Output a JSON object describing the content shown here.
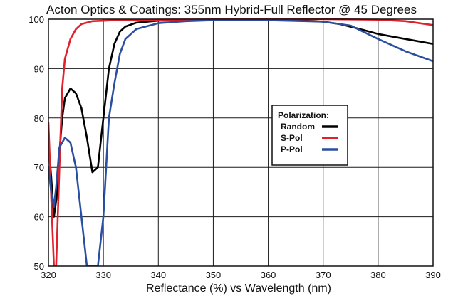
{
  "chart_data": {
    "type": "line",
    "title": "Acton Optics & Coatings: 355nm Hybrid-Full Reflector @ 45 Degrees",
    "xlabel": "Reflectance (%)  vs  Wavelength (nm)",
    "ylabel": "",
    "xlim": [
      320,
      390
    ],
    "ylim": [
      50,
      100
    ],
    "x_ticks": [
      "320",
      "330",
      "340",
      "350",
      "360",
      "370",
      "380",
      "390"
    ],
    "y_ticks": [
      "50",
      "60",
      "70",
      "80",
      "90",
      "100"
    ],
    "grid": true,
    "legend": {
      "title": "Polarization:",
      "placement": "center-right"
    },
    "series": [
      {
        "name": "Random",
        "color": "#000000",
        "points": [
          [
            320,
            75
          ],
          [
            320.5,
            68
          ],
          [
            321,
            60
          ],
          [
            321.5,
            64
          ],
          [
            322,
            73
          ],
          [
            322.5,
            80
          ],
          [
            323,
            84
          ],
          [
            324,
            86
          ],
          [
            325,
            85
          ],
          [
            326,
            82
          ],
          [
            327,
            76
          ],
          [
            328,
            69
          ],
          [
            329,
            70
          ],
          [
            330,
            80
          ],
          [
            331,
            90
          ],
          [
            332,
            95
          ],
          [
            333,
            97.5
          ],
          [
            334,
            98.5
          ],
          [
            336,
            99.3
          ],
          [
            340,
            99.7
          ],
          [
            345,
            99.8
          ],
          [
            350,
            99.9
          ],
          [
            360,
            99.9
          ],
          [
            365,
            99.8
          ],
          [
            370,
            99.5
          ],
          [
            373,
            99
          ],
          [
            376,
            98.2
          ],
          [
            380,
            97
          ],
          [
            385,
            96
          ],
          [
            390,
            95
          ]
        ]
      },
      {
        "name": "S-Pol",
        "color": "#e0202a",
        "points": [
          [
            320,
            79
          ],
          [
            320.5,
            64
          ],
          [
            321,
            50
          ],
          [
            321.4,
            50
          ],
          [
            322,
            70
          ],
          [
            322.5,
            86
          ],
          [
            323,
            92
          ],
          [
            324,
            96
          ],
          [
            325,
            98
          ],
          [
            326,
            99
          ],
          [
            328,
            99.6
          ],
          [
            332,
            99.8
          ],
          [
            340,
            99.9
          ],
          [
            360,
            100
          ],
          [
            370,
            100
          ],
          [
            380,
            99.9
          ],
          [
            385,
            99.6
          ],
          [
            390,
            98.8
          ]
        ]
      },
      {
        "name": "P-Pol",
        "color": "#2a4fa0",
        "points": [
          [
            320,
            70
          ],
          [
            320.5,
            65
          ],
          [
            321,
            62
          ],
          [
            321.4,
            66
          ],
          [
            322,
            74
          ],
          [
            323,
            76
          ],
          [
            324,
            75
          ],
          [
            325,
            70
          ],
          [
            326,
            60
          ],
          [
            327,
            50
          ],
          [
            329,
            50
          ],
          [
            330,
            60
          ],
          [
            331,
            80
          ],
          [
            332,
            87
          ],
          [
            333,
            93
          ],
          [
            334,
            96
          ],
          [
            336,
            98
          ],
          [
            340,
            99.2
          ],
          [
            345,
            99.6
          ],
          [
            350,
            99.8
          ],
          [
            360,
            99.8
          ],
          [
            370,
            99.5
          ],
          [
            375,
            98.7
          ],
          [
            380,
            96
          ],
          [
            385,
            93.5
          ],
          [
            390,
            91.5
          ]
        ]
      }
    ]
  }
}
